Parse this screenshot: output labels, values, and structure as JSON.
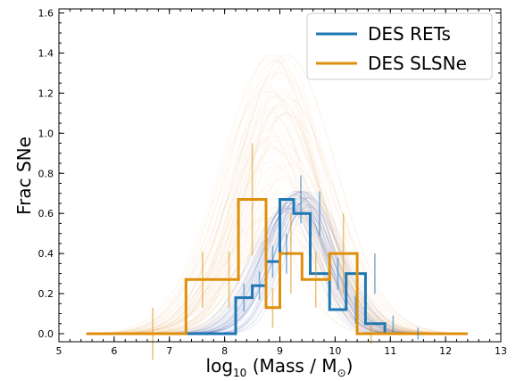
{
  "chart_data": {
    "type": "line",
    "xlabel_prefix": "log",
    "xlabel_sub": "10",
    "xlabel_main": "(Mass / M",
    "xlabel_sun": "⊙",
    "xlabel_close": ")",
    "ylabel": "Frac SNe",
    "xlim": [
      5,
      13
    ],
    "ylim": [
      -0.04,
      1.62
    ],
    "xticks": [
      5,
      6,
      7,
      8,
      9,
      10,
      11,
      12,
      13
    ],
    "yticks": [
      0.0,
      0.2,
      0.4,
      0.6,
      0.8,
      1.0,
      1.2,
      1.4,
      1.6
    ],
    "ytick_labels": [
      "0.0",
      "0.2",
      "0.4",
      "0.6",
      "0.8",
      "1.0",
      "1.2",
      "1.4",
      "1.6"
    ],
    "grid": false,
    "legend_position": "top-right",
    "series": [
      {
        "name": "DES RETs",
        "color": "#1f77b4",
        "style": "step",
        "edges": [
          5.5,
          7.3,
          8.2,
          8.5,
          8.75,
          9.0,
          9.25,
          9.55,
          9.9,
          10.2,
          10.55,
          10.9,
          11.2,
          12.4
        ],
        "values": [
          0.0,
          0.0,
          0.18,
          0.24,
          0.36,
          0.67,
          0.6,
          0.3,
          0.12,
          0.3,
          0.05,
          0.0,
          0.0
        ],
        "errorbars": [
          {
            "x": 8.35,
            "y": 0.18,
            "err": 0.07
          },
          {
            "x": 8.63,
            "y": 0.24,
            "err": 0.07
          },
          {
            "x": 8.87,
            "y": 0.36,
            "err": 0.08
          },
          {
            "x": 9.12,
            "y": 0.4,
            "err": 0.1
          },
          {
            "x": 9.38,
            "y": 0.67,
            "err": 0.12
          },
          {
            "x": 9.72,
            "y": 0.6,
            "err": 0.11
          },
          {
            "x": 10.05,
            "y": 0.3,
            "err": 0.08
          },
          {
            "x": 10.37,
            "y": 0.12,
            "err": 0.07
          },
          {
            "x": 10.72,
            "y": 0.3,
            "err": 0.1
          },
          {
            "x": 11.05,
            "y": 0.05,
            "err": 0.04
          },
          {
            "x": 11.5,
            "y": 0.0,
            "err": 0.03
          }
        ]
      },
      {
        "name": "DES SLSNe",
        "color": "#e08f0b",
        "style": "step",
        "edges": [
          5.5,
          7.3,
          7.9,
          8.25,
          8.75,
          9.0,
          9.4,
          9.9,
          10.4,
          10.9,
          11.3,
          12.4
        ],
        "values": [
          0.0,
          0.27,
          0.27,
          0.67,
          0.13,
          0.4,
          0.27,
          0.4,
          0.0,
          0.0,
          0.0
        ],
        "errorbars": [
          {
            "x": 6.7,
            "y": 0.0,
            "err": 0.13
          },
          {
            "x": 7.6,
            "y": 0.27,
            "err": 0.14
          },
          {
            "x": 8.08,
            "y": 0.27,
            "err": 0.14
          },
          {
            "x": 8.5,
            "y": 0.67,
            "err": 0.28
          },
          {
            "x": 8.87,
            "y": 0.13,
            "err": 0.1
          },
          {
            "x": 9.2,
            "y": 0.4,
            "err": 0.2
          },
          {
            "x": 9.65,
            "y": 0.27,
            "err": 0.14
          },
          {
            "x": 10.15,
            "y": 0.4,
            "err": 0.2
          },
          {
            "x": 10.65,
            "y": 0.0,
            "err": 0.05
          }
        ]
      }
    ],
    "model_bands": [
      {
        "series": "DES RETs",
        "color": "#1f3d9a",
        "mu": 9.35,
        "sigma": 0.55,
        "peak_range": [
          0.6,
          0.72
        ],
        "count": 40
      },
      {
        "series": "DES SLSNe",
        "color": "#e0a040",
        "mu": 8.95,
        "sigma": 0.75,
        "peak_range": [
          0.45,
          1.4
        ],
        "count": 70
      }
    ]
  }
}
